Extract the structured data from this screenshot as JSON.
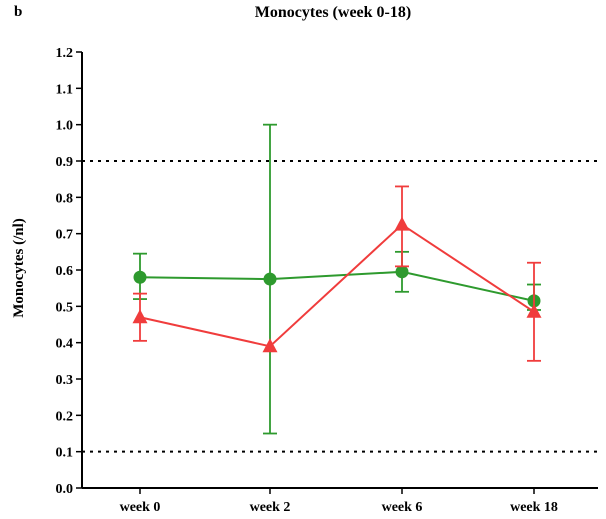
{
  "panel_label": "b",
  "chart_data": {
    "type": "line",
    "title": "Monocytes (week 0-18)",
    "xlabel": "",
    "ylabel": "Monocytes (/nl)",
    "categories": [
      "week 0",
      "week 2",
      "week 6",
      "week 18"
    ],
    "ylim": [
      0.0,
      1.2
    ],
    "yticks": [
      "0.0",
      "0.1",
      "0.2",
      "0.3",
      "0.4",
      "0.5",
      "0.6",
      "0.7",
      "0.8",
      "0.9",
      "1.0",
      "1.1",
      "1.2"
    ],
    "reference_lines": [
      0.9,
      0.1
    ],
    "grid": false,
    "legend": "none",
    "series": [
      {
        "marker": "circle",
        "color": "#2e9a2e",
        "values": [
          0.58,
          0.575,
          0.595,
          0.515
        ],
        "err_low": [
          0.52,
          0.15,
          0.54,
          0.49
        ],
        "err_high": [
          0.645,
          1.0,
          0.65,
          0.56
        ]
      },
      {
        "marker": "triangle",
        "color": "#f03c3c",
        "values": [
          0.47,
          0.39,
          0.725,
          0.485
        ],
        "err_low": [
          0.405,
          0.39,
          0.61,
          0.35
        ],
        "err_high": [
          0.535,
          0.39,
          0.83,
          0.62
        ]
      }
    ]
  }
}
